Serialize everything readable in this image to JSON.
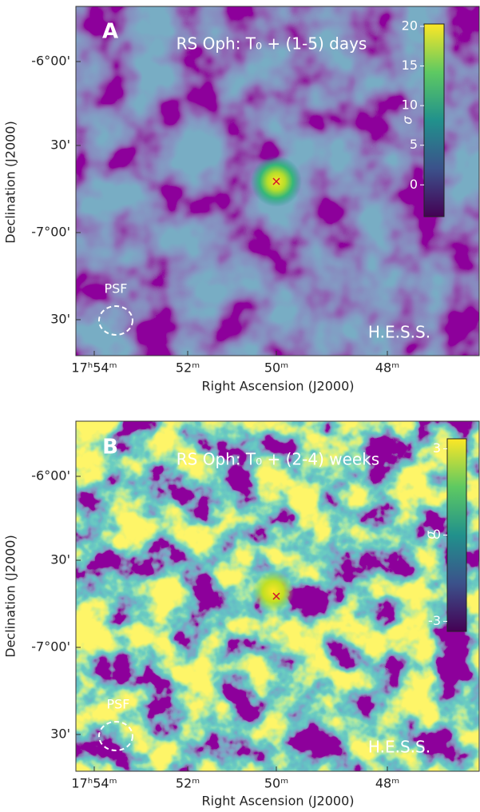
{
  "figure": {
    "panels": [
      {
        "label": "A",
        "title": "RS Oph: T₀ + (1-5) days",
        "x_tick_labels": [
          "17ʰ54ᵐ",
          "52ᵐ",
          "50ᵐ",
          "48ᵐ"
        ],
        "y_tick_labels": [
          "-6°00'",
          "30'",
          "-7°00'",
          "30'"
        ],
        "x_label": "Right Ascension (J2000)",
        "y_label": "Declination (J2000)",
        "psf_label": "PSF",
        "instrument": "H.E.S.S.",
        "colorbar": {
          "label": "σ",
          "lim": [
            -4,
            20.3
          ],
          "ticks": [
            0,
            5,
            10,
            15,
            20
          ]
        }
      },
      {
        "label": "B",
        "title": "RS Oph: T₀ + (2-4) weeks",
        "x_tick_labels": [
          "17ʰ54ᵐ",
          "52ᵐ",
          "50ᵐ",
          "48ᵐ"
        ],
        "y_tick_labels": [
          "-6°00'",
          "30'",
          "-7°00'",
          "30'"
        ],
        "x_label": "Right Ascension (J2000)",
        "y_label": "Declination (J2000)",
        "psf_label": "PSF",
        "instrument": "H.E.S.S.",
        "colorbar": {
          "label": "σ",
          "lim": [
            -3.35,
            3.35
          ],
          "ticks": [
            -3,
            0,
            3
          ]
        }
      }
    ]
  }
}
